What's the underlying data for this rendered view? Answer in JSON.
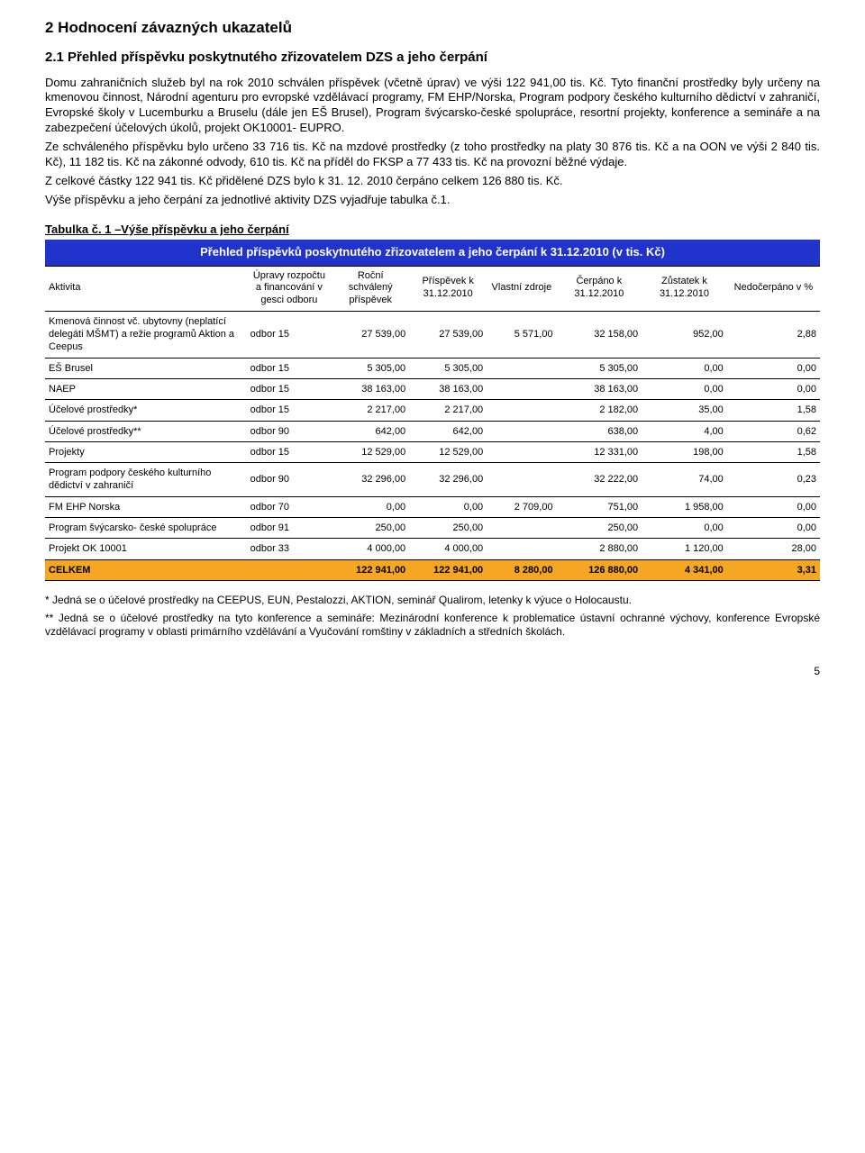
{
  "heading1": "2 Hodnocení závazných ukazatelů",
  "heading2": "2.1 Přehled příspěvku poskytnutého zřizovatelem DZS a jeho čerpání",
  "para1": "Domu zahraničních služeb byl na rok 2010 schválen příspěvek (včetně úprav) ve výši 122 941,00 tis. Kč. Tyto finanční prostředky byly určeny na kmenovou činnost, Národní agenturu pro evropské vzdělávací programy, FM EHP/Norska, Program podpory českého kulturního dědictví v zahraničí, Evropské školy v Lucemburku a Bruselu (dále jen EŠ Brusel), Program švýcarsko-české spolupráce, resortní projekty, konference a semináře a na zabezpečení účelových úkolů, projekt OK10001- EUPRO.",
  "para2": "Ze schváleného příspěvku bylo určeno 33 716 tis. Kč na mzdové prostředky (z toho prostředky na platy 30 876  tis. Kč a na OON ve výši 2 840 tis. Kč), 11 182 tis. Kč na zákonné odvody, 610 tis. Kč na příděl do FKSP a 77 433 tis. Kč na provozní běžné výdaje.",
  "para3": "Z celkové částky 122 941 tis. Kč přidělené DZS bylo k 31. 12. 2010 čerpáno celkem 126 880 tis. Kč.",
  "para4": "Výše příspěvku a jeho čerpání za jednotlivé aktivity DZS vyjadřuje tabulka č.1.",
  "table_caption": "Tabulka č. 1 –Výše příspěvku a jeho čerpání",
  "table_title": "Přehled příspěvků poskytnutého zřizovatelem a jeho čerpání k 31.12.2010 (v tis. Kč)",
  "headers": {
    "c0": "Aktivita",
    "c1": "Úpravy rozpočtu a financování v gesci odboru",
    "c2": "Roční schválený příspěvek",
    "c3": "Příspěvek k 31.12.2010",
    "c4": "Vlastní zdroje",
    "c5": "Čerpáno k 31.12.2010",
    "c6": "Zůstatek k 31.12.2010",
    "c7": "Nedočerpáno v %"
  },
  "rows": [
    {
      "label": "Kmenová činnost vč. ubytovny (neplatící delegáti MŠMT) a režie programů Aktion a Ceepus",
      "odbor": "odbor 15",
      "v": [
        "27 539,00",
        "27 539,00",
        "5 571,00",
        "32 158,00",
        "952,00",
        "2,88"
      ]
    },
    {
      "label": "EŠ Brusel",
      "odbor": "odbor 15",
      "v": [
        "5 305,00",
        "5 305,00",
        "",
        "5 305,00",
        "0,00",
        "0,00"
      ]
    },
    {
      "label": "NAEP",
      "odbor": "odbor 15",
      "v": [
        "38 163,00",
        "38 163,00",
        "",
        "38 163,00",
        "0,00",
        "0,00"
      ]
    },
    {
      "label": "Účelové prostředky*",
      "odbor": "odbor 15",
      "v": [
        "2 217,00",
        "2 217,00",
        "",
        "2 182,00",
        "35,00",
        "1,58"
      ]
    },
    {
      "label": "Účelové prostředky**",
      "odbor": "odbor 90",
      "v": [
        "642,00",
        "642,00",
        "",
        "638,00",
        "4,00",
        "0,62"
      ]
    },
    {
      "label": "Projekty",
      "odbor": "odbor 15",
      "v": [
        "12 529,00",
        "12 529,00",
        "",
        "12 331,00",
        "198,00",
        "1,58"
      ]
    },
    {
      "label": "Program podpory českého kulturního dědictví v zahraničí",
      "odbor": "odbor 90",
      "v": [
        "32 296,00",
        "32 296,00",
        "",
        "32 222,00",
        "74,00",
        "0,23"
      ]
    },
    {
      "label": "FM EHP Norska",
      "odbor": "odbor 70",
      "v": [
        "0,00",
        "0,00",
        "2 709,00",
        "751,00",
        "1 958,00",
        "0,00"
      ]
    },
    {
      "label": "Program švýcarsko- české spolupráce",
      "odbor": "odbor 91",
      "v": [
        "250,00",
        "250,00",
        "",
        "250,00",
        "0,00",
        "0,00"
      ]
    },
    {
      "label": "Projekt OK 10001",
      "odbor": "odbor 33",
      "v": [
        "4 000,00",
        "4 000,00",
        "",
        "2 880,00",
        "1 120,00",
        "28,00"
      ]
    }
  ],
  "sum": {
    "label": "CELKEM",
    "v": [
      "122 941,00",
      "122 941,00",
      "8 280,00",
      "126 880,00",
      "4 341,00",
      "3,31"
    ]
  },
  "footnote1": "* Jedná se o účelové prostředky na CEEPUS, EUN, Pestalozzi, AKTION, seminář  Qualirom, letenky k výuce o Holocaustu.",
  "footnote2": "** Jedná se o účelové prostředky na tyto konference a semináře: Mezinárodní konference k problematice ústavní ochranné výchovy, konference Evropské vzdělávací programy v oblasti primárního vzdělávání a Vyučování romštiny v základních a středních školách.",
  "page_number": "5",
  "colors": {
    "title_bg": "#2233cc",
    "title_fg": "#ffffff",
    "sum_bg": "#f5a623",
    "border": "#000000"
  },
  "col_widths": [
    "26%",
    "11%",
    "10%",
    "10%",
    "9%",
    "11%",
    "11%",
    "12%"
  ]
}
